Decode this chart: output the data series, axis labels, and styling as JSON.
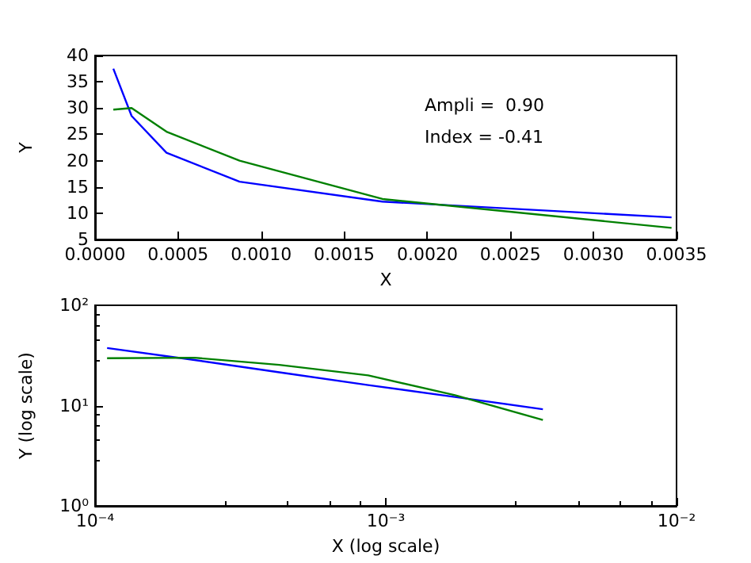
{
  "chart_data": [
    {
      "type": "line",
      "xlabel": "X",
      "ylabel": "Y",
      "x": [
        0.00011,
        0.00022,
        0.00043,
        0.00087,
        0.00173,
        0.00347
      ],
      "series": [
        {
          "color": "#0000ff",
          "values": [
            37.5,
            28.5,
            21.5,
            16,
            12.2,
            9.2
          ]
        },
        {
          "color": "#008000",
          "values": [
            29.7,
            30,
            25.5,
            20,
            12.7,
            7.2
          ]
        }
      ],
      "xlim": [
        0,
        0.0035
      ],
      "ylim": [
        5,
        40
      ],
      "xticks": [
        {
          "value": 0,
          "label": "0.0000"
        },
        {
          "value": 0.0005,
          "label": "0.0005"
        },
        {
          "value": 0.001,
          "label": "0.0010"
        },
        {
          "value": 0.0015,
          "label": "0.0015"
        },
        {
          "value": 0.002,
          "label": "0.0020"
        },
        {
          "value": 0.0025,
          "label": "0.0025"
        },
        {
          "value": 0.003,
          "label": "0.0030"
        },
        {
          "value": 0.0035,
          "label": "0.0035"
        }
      ],
      "yticks": [
        5,
        10,
        15,
        20,
        25,
        30,
        35,
        40
      ],
      "annotations": [
        "Ampli =  0.90",
        "Index = -0.41"
      ]
    },
    {
      "type": "line",
      "xlabel": "X (log scale)",
      "ylabel": "Y (log scale)",
      "x": [
        0.00011,
        0.00022,
        0.00043,
        0.00087,
        0.00173,
        0.00347
      ],
      "series": [
        {
          "color": "#0000ff",
          "values": [
            37.5,
            28.5,
            21.5,
            16,
            12.2,
            9.2
          ]
        },
        {
          "color": "#008000",
          "values": [
            29.7,
            30,
            25.5,
            20,
            12.7,
            7.2
          ]
        }
      ],
      "log": "xy",
      "xlim": [
        0.0001,
        0.01
      ],
      "ylim": [
        1,
        100
      ],
      "xticks": [
        {
          "value": 0.0001,
          "label": "10⁻⁴"
        },
        {
          "value": 0.001,
          "label": "10⁻³"
        },
        {
          "value": 0.01,
          "label": "10⁻²"
        }
      ],
      "yticks": [
        {
          "value": 1,
          "label": "10⁰"
        },
        {
          "value": 10,
          "label": "10¹"
        },
        {
          "value": 100,
          "label": "10²"
        }
      ]
    }
  ]
}
